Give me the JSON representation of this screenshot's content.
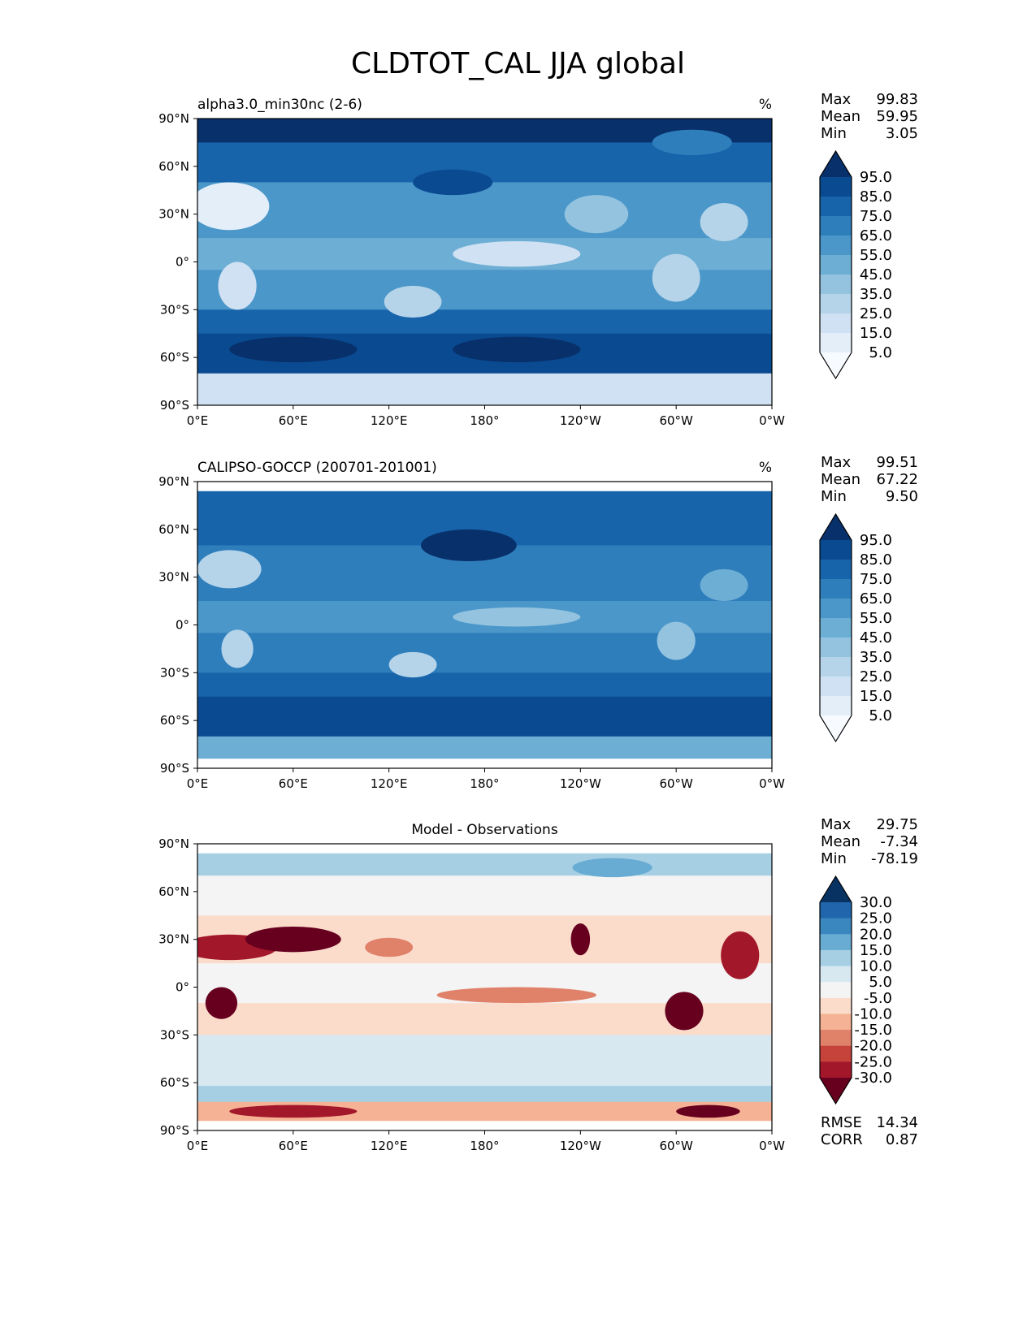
{
  "figure_title": "CLDTOT_CAL JJA global",
  "chart_data": [
    {
      "type": "heatmap",
      "title": "alpha3.0_min30nc (2-6)",
      "units": "%",
      "stats": {
        "Max": "99.83",
        "Mean": "59.95",
        "Min": "3.05"
      },
      "colorbar": {
        "levels": [
          "95.0",
          "85.0",
          "75.0",
          "65.0",
          "55.0",
          "45.0",
          "35.0",
          "25.0",
          "15.0",
          "5.0"
        ],
        "colors": [
          "#08306b",
          "#0a4a90",
          "#1864aa",
          "#2f7ebc",
          "#4b97c9",
          "#6daed5",
          "#93c3df",
          "#b5d4e9",
          "#cfe1f2",
          "#e3eef9",
          "#f7fbff"
        ]
      }
    },
    {
      "type": "heatmap",
      "title": "CALIPSO-GOCCP (200701-201001)",
      "units": "%",
      "stats": {
        "Max": "99.51",
        "Mean": "67.22",
        "Min": "9.50"
      },
      "colorbar": {
        "levels": [
          "95.0",
          "85.0",
          "75.0",
          "65.0",
          "55.0",
          "45.0",
          "35.0",
          "25.0",
          "15.0",
          "5.0"
        ],
        "colors": [
          "#08306b",
          "#0a4a90",
          "#1864aa",
          "#2f7ebc",
          "#4b97c9",
          "#6daed5",
          "#93c3df",
          "#b5d4e9",
          "#cfe1f2",
          "#e3eef9",
          "#f7fbff"
        ]
      }
    },
    {
      "type": "heatmap",
      "title": "Model - Observations",
      "units": "",
      "stats": {
        "Max": "29.75",
        "Mean": "-7.34",
        "Min": "-78.19"
      },
      "extra_stats": {
        "RMSE": "14.34",
        "CORR": "0.87"
      },
      "colorbar": {
        "levels": [
          "30.0",
          "25.0",
          "20.0",
          "15.0",
          "10.0",
          "5.0",
          "-5.0",
          "-10.0",
          "-15.0",
          "-20.0",
          "-25.0",
          "-30.0"
        ],
        "colors": [
          "#083262",
          "#2166ac",
          "#3a87c0",
          "#69acd3",
          "#a6cfe4",
          "#d7e8f1",
          "#f4f4f4",
          "#fbdccb",
          "#f5b294",
          "#e0816a",
          "#c6433c",
          "#a3172a",
          "#67001f"
        ]
      }
    }
  ],
  "axes": {
    "lat_ticks": [
      "90°N",
      "60°N",
      "30°N",
      "0°",
      "30°S",
      "60°S",
      "90°S"
    ],
    "lon_ticks": [
      "0°E",
      "60°E",
      "120°E",
      "180°",
      "120°W",
      "60°W",
      "0°W"
    ]
  }
}
